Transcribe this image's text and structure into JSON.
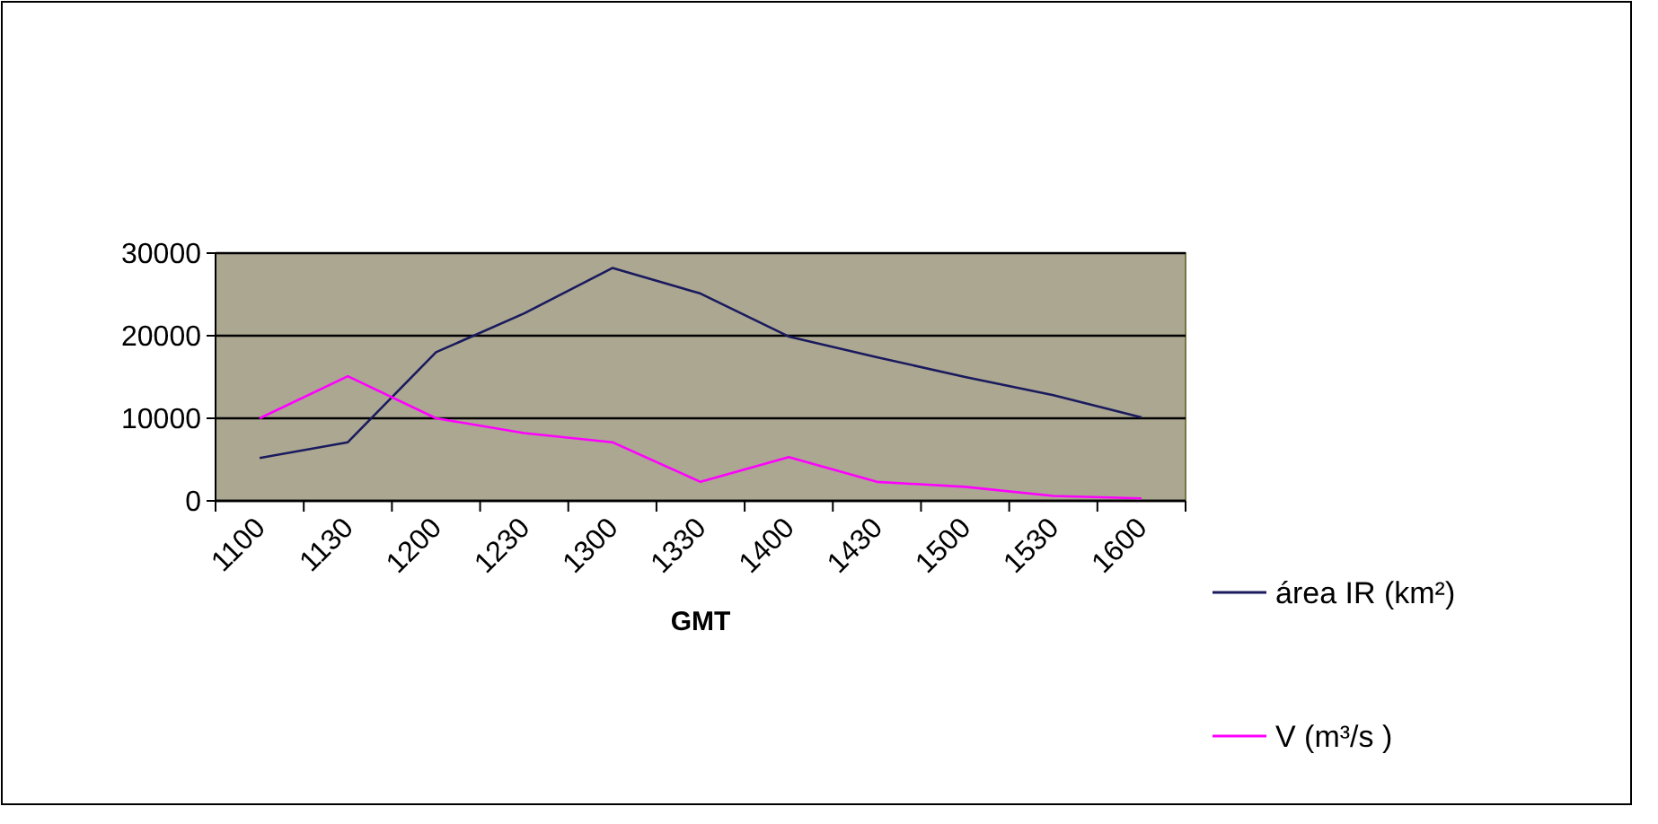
{
  "chart_data": {
    "type": "line",
    "xlabel": "GMT",
    "categories": [
      "1100",
      "1130",
      "1200",
      "1230",
      "1300",
      "1330",
      "1400",
      "1430",
      "1500",
      "1530",
      "1600"
    ],
    "series": [
      {
        "name": "área IR (km²)",
        "color": "#1a1a5e",
        "values": [
          5200,
          7100,
          18000,
          22700,
          28200,
          25100,
          19900,
          17400,
          15000,
          12800,
          10100
        ]
      },
      {
        "name": "V (m³/s )",
        "color": "#ff00ff",
        "values": [
          10000,
          15100,
          10000,
          8200,
          7100,
          2300,
          5300,
          2300,
          1700,
          600,
          300
        ]
      }
    ],
    "ylim": [
      0,
      30000
    ],
    "yticks": [
      0,
      10000,
      20000,
      30000
    ],
    "grid": "y",
    "legend": "right",
    "marker": "none",
    "line_style": "solid"
  }
}
